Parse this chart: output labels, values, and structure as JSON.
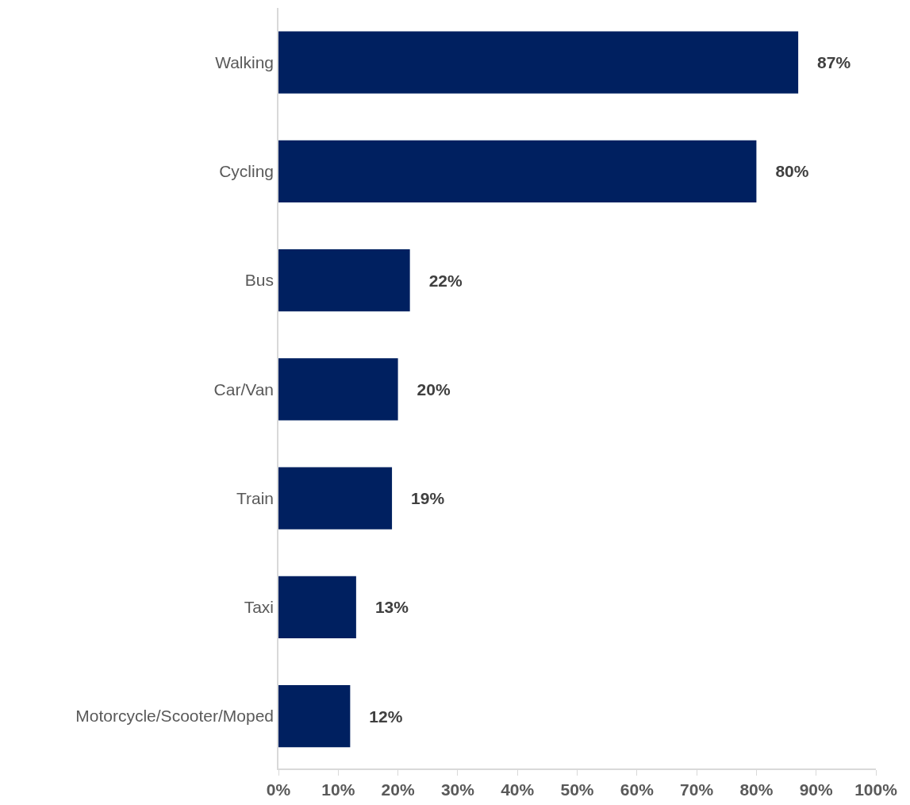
{
  "chart_data": {
    "type": "bar",
    "orientation": "horizontal",
    "categories": [
      "Walking",
      "Cycling",
      "Bus",
      "Car/Van",
      "Train",
      "Taxi",
      "Motorcycle/Scooter/Moped"
    ],
    "values": [
      87,
      80,
      22,
      20,
      19,
      13,
      12
    ],
    "value_labels": [
      "87%",
      "80%",
      "22%",
      "20%",
      "19%",
      "13%",
      "12%"
    ],
    "color": "#002060",
    "xlim": [
      0,
      100
    ],
    "xticks": [
      {
        "value": 0,
        "label": "0%"
      },
      {
        "value": 10,
        "label": "10%"
      },
      {
        "value": 20,
        "label": "20%"
      },
      {
        "value": 30,
        "label": "30%"
      },
      {
        "value": 40,
        "label": "40%"
      },
      {
        "value": 50,
        "label": "50%"
      },
      {
        "value": 60,
        "label": "60%"
      },
      {
        "value": 70,
        "label": "70%"
      },
      {
        "value": 80,
        "label": "80%"
      },
      {
        "value": 90,
        "label": "90%"
      },
      {
        "value": 100,
        "label": "100%"
      }
    ],
    "legend": false
  }
}
